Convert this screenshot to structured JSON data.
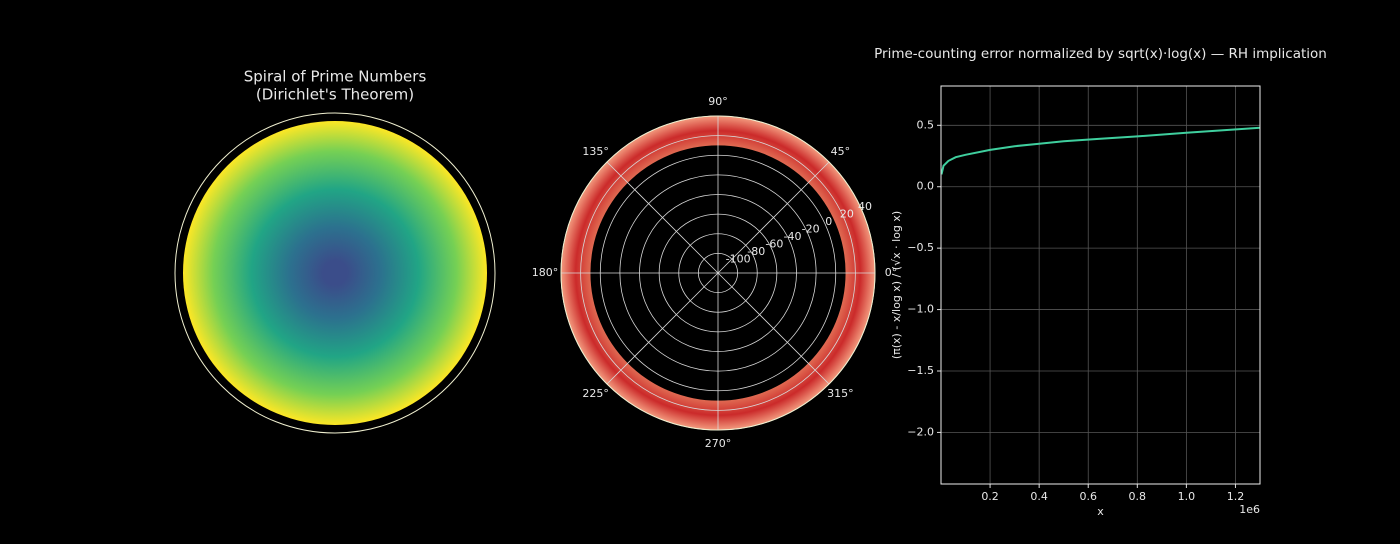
{
  "chart_data": [
    {
      "type": "polar-spiral",
      "title": [
        "Spiral of Prime Numbers",
        "(Dirichlet's Theorem)"
      ],
      "colormap": "viridis"
    },
    {
      "type": "polar-ring",
      "colormap": "Reds",
      "rlim": [
        -120,
        40
      ],
      "rticks": [
        -100,
        -80,
        -60,
        -40,
        -20,
        0,
        20,
        40
      ],
      "r_extent": [
        10,
        40
      ],
      "thetaticks": [
        {
          "value": 0,
          "label": "0°"
        },
        {
          "value": 45,
          "label": "45°"
        },
        {
          "value": 90,
          "label": "90°"
        },
        {
          "value": 135,
          "label": "135°"
        },
        {
          "value": 180,
          "label": "180°"
        },
        {
          "value": 225,
          "label": "225°"
        },
        {
          "value": 270,
          "label": "270°"
        },
        {
          "value": 315,
          "label": "315°"
        }
      ],
      "grid": true
    },
    {
      "type": "line",
      "title": "Prime-counting error normalized by sqrt(x)·log(x) — RH implication",
      "xlabel": "x",
      "ylabel": "(π(x) - x/log x) / (√x · log x)",
      "x_offset_label": "1e6",
      "x": [
        2000,
        10000,
        30000,
        60000,
        100000,
        200000,
        300000,
        400000,
        500000,
        650000,
        800000,
        1000000,
        1150000,
        1300000
      ],
      "series": [
        {
          "color": "#3fcf9e",
          "values": [
            0.1,
            0.17,
            0.21,
            0.24,
            0.26,
            0.3,
            0.33,
            0.35,
            0.37,
            0.39,
            0.41,
            0.44,
            0.46,
            0.48
          ]
        }
      ],
      "xlim": [
        0,
        1300000
      ],
      "xticks": [
        {
          "value": 200000,
          "label": "0.2"
        },
        {
          "value": 400000,
          "label": "0.4"
        },
        {
          "value": 600000,
          "label": "0.6"
        },
        {
          "value": 800000,
          "label": "0.8"
        },
        {
          "value": 1000000,
          "label": "1.0"
        },
        {
          "value": 1200000,
          "label": "1.2"
        }
      ],
      "ylim": [
        -2.42,
        0.82
      ],
      "yticks": [
        {
          "value": -2,
          "label": "−2.0"
        },
        {
          "value": -1.5,
          "label": "−1.5"
        },
        {
          "value": -1,
          "label": "−1.0"
        },
        {
          "value": -0.5,
          "label": "−0.5"
        },
        {
          "value": 0,
          "label": "0.0"
        },
        0.5
      ],
      "grid": true
    }
  ]
}
